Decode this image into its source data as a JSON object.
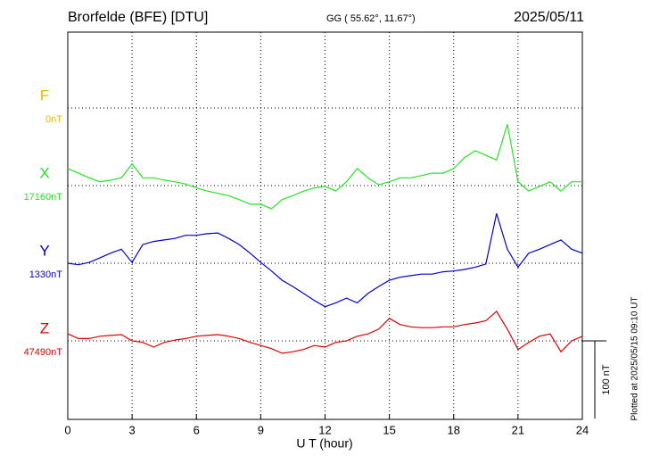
{
  "chart_data": {
    "type": "line",
    "title": "Brorfelde (BFE)  [DTU]",
    "subtitle": "GG ( 55.62°,  11.67°)",
    "date": "2025/05/11",
    "x_label": "U T (hour)",
    "footnote": "Plotted at 2025/05/15 09:10 UT",
    "scale": {
      "value": 100,
      "label": "100 nT"
    },
    "x": [
      0,
      0.5,
      1,
      1.5,
      2,
      2.5,
      3,
      3.5,
      4,
      4.5,
      5,
      5.5,
      6,
      6.5,
      7,
      7.5,
      8,
      8.5,
      9,
      9.5,
      10,
      10.5,
      11,
      11.5,
      12,
      12.5,
      13,
      13.5,
      14,
      14.5,
      15,
      15.5,
      16,
      16.5,
      17,
      17.5,
      18,
      18.5,
      19,
      19.5,
      20,
      20.5,
      21,
      21.5,
      22,
      22.5,
      23,
      23.5,
      24
    ],
    "xlim": [
      0,
      24
    ],
    "xticks": [
      0,
      3,
      6,
      9,
      12,
      15,
      18,
      21,
      24
    ],
    "grid": true,
    "series": [
      {
        "name": "F",
        "color": "#f0b400",
        "base": {
          "value": 0,
          "label": "0nT"
        }
      },
      {
        "name": "X",
        "color": "#22e622",
        "base": {
          "value": 17160,
          "label": "17160nT"
        },
        "values": [
          17182,
          17176,
          17170,
          17165,
          17167,
          17170,
          17188,
          17170,
          17170,
          17167,
          17165,
          17162,
          17157,
          17153,
          17150,
          17147,
          17142,
          17136,
          17136,
          17130,
          17142,
          17147,
          17153,
          17157,
          17159,
          17153,
          17165,
          17182,
          17170,
          17161,
          17165,
          17170,
          17170,
          17173,
          17176,
          17176,
          17182,
          17196,
          17205,
          17199,
          17193,
          17239,
          17165,
          17153,
          17159,
          17165,
          17153,
          17165,
          17165
        ]
      },
      {
        "name": "Y",
        "color": "#0000d0",
        "base": {
          "value": 1330,
          "label": "1330nT"
        },
        "values": [
          1330,
          1328,
          1331,
          1337,
          1343,
          1348,
          1331,
          1354,
          1358,
          1360,
          1362,
          1366,
          1366,
          1368,
          1369,
          1362,
          1354,
          1343,
          1331,
          1320,
          1308,
          1300,
          1291,
          1282,
          1274,
          1279,
          1285,
          1279,
          1291,
          1300,
          1308,
          1312,
          1314,
          1316,
          1316,
          1319,
          1320,
          1322,
          1325,
          1329,
          1394,
          1348,
          1325,
          1343,
          1348,
          1354,
          1360,
          1348,
          1343
        ]
      },
      {
        "name": "Z",
        "color": "#e00000",
        "base": {
          "value": 47490,
          "label": "47490nT"
        },
        "values": [
          47499,
          47493,
          47493,
          47496,
          47497,
          47498,
          47490,
          47488,
          47482,
          47488,
          47491,
          47493,
          47496,
          47497,
          47498,
          47496,
          47493,
          47488,
          47484,
          47480,
          47474,
          47476,
          47479,
          47484,
          47482,
          47488,
          47490,
          47496,
          47499,
          47505,
          47519,
          47511,
          47508,
          47507,
          47507,
          47508,
          47508,
          47511,
          47513,
          47516,
          47528,
          47505,
          47479,
          47488,
          47496,
          47499,
          47476,
          47490,
          47496
        ]
      }
    ]
  }
}
